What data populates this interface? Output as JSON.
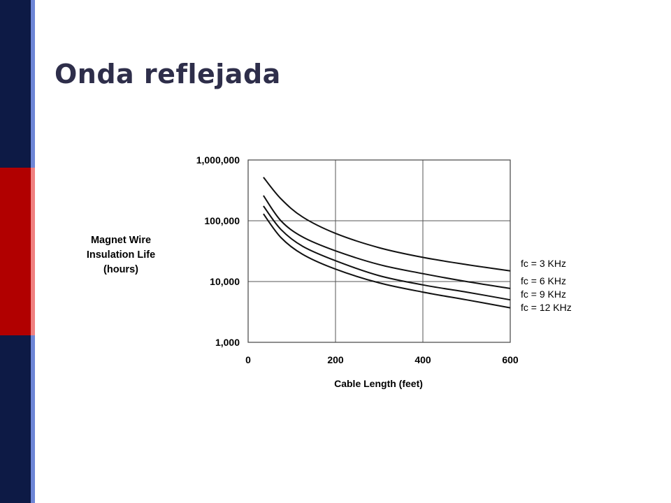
{
  "slide": {
    "title": "Onda reflejada",
    "colors": {
      "title": "#2e2e4a",
      "sidebar_top": "#0d1a45",
      "sidebar_mid": "#b10000",
      "sidebar_bot": "#0d1a45",
      "stripe_top": "#6d86d6",
      "stripe_mid": "#f08080",
      "stripe_bot": "#6d86d6"
    }
  },
  "chart_data": {
    "type": "line",
    "title": "",
    "xlabel": "Cable Length (feet)",
    "ylabel": [
      "Magnet Wire",
      "Insulation Life",
      "(hours)"
    ],
    "x_scale": "linear",
    "y_scale": "log",
    "xlim": [
      0,
      600
    ],
    "ylim": [
      1000,
      1000000
    ],
    "x_ticks": [
      0,
      200,
      400,
      600
    ],
    "x_tick_labels": [
      "0",
      "200",
      "400",
      "600"
    ],
    "y_ticks": [
      1000,
      10000,
      100000,
      1000000
    ],
    "y_tick_labels": [
      "1,000",
      "10,000",
      "100,000",
      "1,000,000"
    ],
    "grid": true,
    "legend_position": "right",
    "series": [
      {
        "name": "fc = 3 KHz",
        "x": [
          35,
          75,
          125,
          200,
          300,
          400,
          500,
          600
        ],
        "y": [
          520000,
          230000,
          115000,
          62000,
          36000,
          25000,
          19000,
          15000
        ]
      },
      {
        "name": "fc = 6 KHz",
        "x": [
          35,
          75,
          125,
          200,
          300,
          400,
          500,
          600
        ],
        "y": [
          260000,
          100000,
          54000,
          32000,
          19000,
          13500,
          10000,
          7700
        ]
      },
      {
        "name": "fc = 9 KHz",
        "x": [
          35,
          75,
          125,
          200,
          300,
          400,
          500,
          600
        ],
        "y": [
          175000,
          72000,
          38000,
          22000,
          12500,
          8800,
          6700,
          5000
        ]
      },
      {
        "name": "fc = 12 KHz",
        "x": [
          35,
          75,
          125,
          200,
          300,
          400,
          500,
          600
        ],
        "y": [
          130000,
          53000,
          28000,
          16000,
          9500,
          6700,
          5000,
          3700
        ]
      }
    ]
  }
}
